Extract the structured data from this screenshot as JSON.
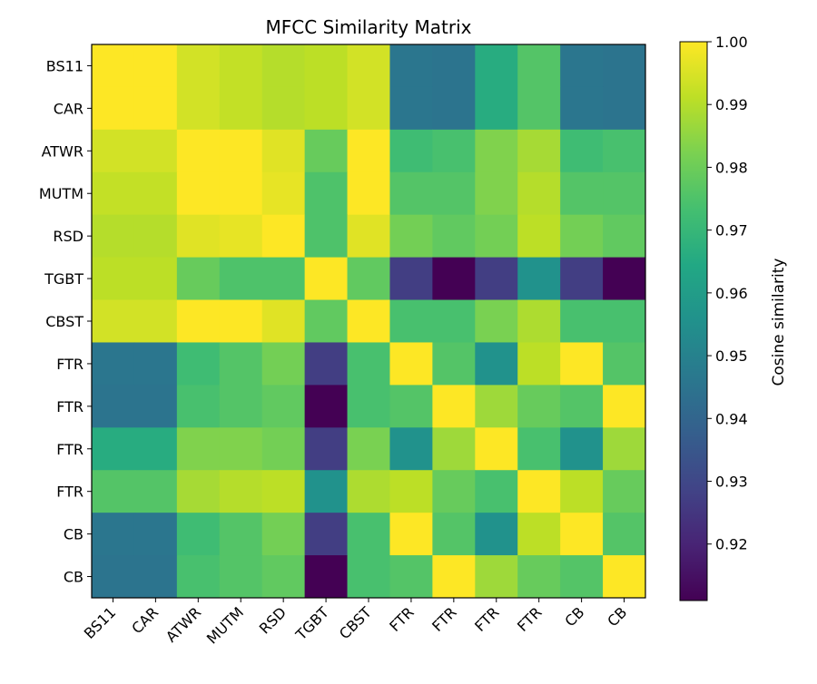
{
  "chart_data": {
    "type": "heatmap",
    "title": "MFCC Similarity Matrix",
    "x_labels": [
      "BS11",
      "CAR",
      "ATWR",
      "MUTM",
      "RSD",
      "TGBT",
      "CBST",
      "FTR",
      "FTR",
      "FTR",
      "FTR",
      "CB",
      "CB"
    ],
    "y_labels": [
      "BS11",
      "CAR",
      "ATWR",
      "MUTM",
      "RSD",
      "TGBT",
      "CBST",
      "FTR",
      "FTR",
      "FTR",
      "FTR",
      "CB",
      "CB"
    ],
    "values": [
      [
        1.0,
        1.0,
        0.994,
        0.992,
        0.99,
        0.991,
        0.994,
        0.946,
        0.945,
        0.966,
        0.976,
        0.946,
        0.945
      ],
      [
        1.0,
        1.0,
        0.994,
        0.992,
        0.99,
        0.991,
        0.994,
        0.946,
        0.945,
        0.966,
        0.976,
        0.946,
        0.945
      ],
      [
        0.994,
        0.994,
        1.0,
        1.0,
        0.996,
        0.979,
        1.0,
        0.972,
        0.974,
        0.983,
        0.988,
        0.972,
        0.974
      ],
      [
        0.992,
        0.992,
        1.0,
        1.0,
        0.997,
        0.975,
        1.0,
        0.976,
        0.976,
        0.983,
        0.99,
        0.976,
        0.976
      ],
      [
        0.99,
        0.99,
        0.996,
        0.997,
        1.0,
        0.975,
        0.996,
        0.981,
        0.978,
        0.981,
        0.991,
        0.981,
        0.978
      ],
      [
        0.991,
        0.991,
        0.979,
        0.975,
        0.975,
        1.0,
        0.978,
        0.927,
        0.911,
        0.927,
        0.956,
        0.927,
        0.911
      ],
      [
        0.994,
        0.994,
        1.0,
        1.0,
        0.996,
        0.978,
        1.0,
        0.974,
        0.974,
        0.982,
        0.989,
        0.974,
        0.974
      ],
      [
        0.946,
        0.946,
        0.972,
        0.976,
        0.981,
        0.927,
        0.974,
        1.0,
        0.976,
        0.956,
        0.991,
        1.0,
        0.976
      ],
      [
        0.945,
        0.945,
        0.974,
        0.976,
        0.978,
        0.911,
        0.974,
        0.976,
        1.0,
        0.987,
        0.979,
        0.976,
        1.0
      ],
      [
        0.966,
        0.966,
        0.983,
        0.983,
        0.981,
        0.927,
        0.982,
        0.956,
        0.987,
        1.0,
        0.974,
        0.956,
        0.987
      ],
      [
        0.976,
        0.976,
        0.988,
        0.99,
        0.991,
        0.956,
        0.989,
        0.991,
        0.979,
        0.974,
        1.0,
        0.991,
        0.979
      ],
      [
        0.946,
        0.946,
        0.972,
        0.976,
        0.981,
        0.927,
        0.974,
        1.0,
        0.976,
        0.956,
        0.991,
        1.0,
        0.976
      ],
      [
        0.945,
        0.945,
        0.974,
        0.976,
        0.978,
        0.911,
        0.974,
        0.976,
        1.0,
        0.987,
        0.979,
        0.976,
        1.0
      ]
    ],
    "colormap": "viridis",
    "vmin": 0.911,
    "vmax": 1.0,
    "colorbar": {
      "label": "Cosine similarity",
      "ticks": [
        0.92,
        0.93,
        0.94,
        0.95,
        0.96,
        0.97,
        0.98,
        0.99,
        1.0
      ],
      "tick_labels": [
        "0.92",
        "0.93",
        "0.94",
        "0.95",
        "0.96",
        "0.97",
        "0.98",
        "0.99",
        "1.00"
      ]
    }
  }
}
